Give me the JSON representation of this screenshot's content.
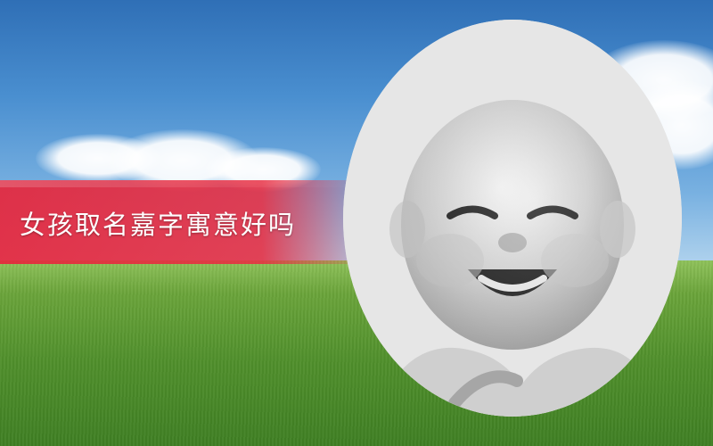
{
  "headline": "女孩取名嘉字寓意好吗",
  "photo": {
    "subject_icon": "baby-portrait-icon"
  },
  "background": {
    "sky_color": "#4a8fd0",
    "grass_color": "#4f8f2b",
    "banner_color": "#e6263c"
  }
}
